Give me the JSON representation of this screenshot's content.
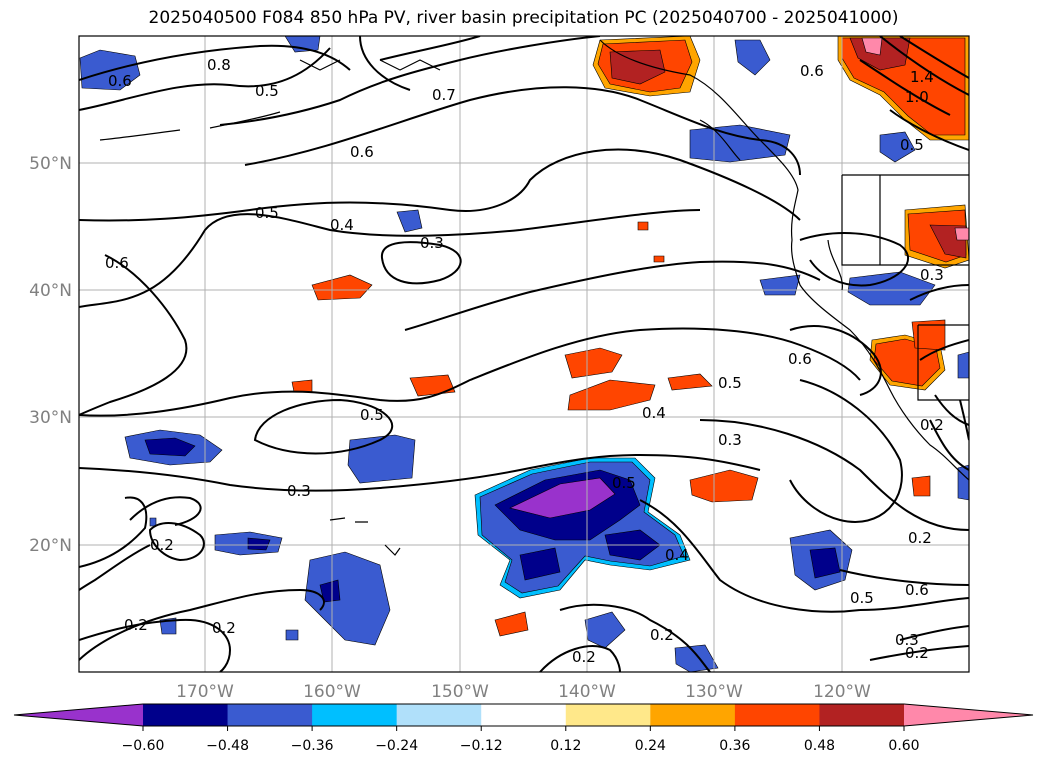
{
  "title": "2025040500 F084 850 hPa PV, river basin precipitation PC (2025040700 - 2025041000)",
  "lon_labels": [
    "170°W",
    "160°W",
    "150°W",
    "140°W",
    "130°W",
    "120°W"
  ],
  "lat_labels": [
    "50°N",
    "40°N",
    "30°N",
    "20°N"
  ],
  "colorbar": {
    "colors": [
      "#9932cc",
      "#00008b",
      "#3a5bd0",
      "#00bfff",
      "#b0e0fa",
      "#ffffff",
      "#ffe88a",
      "#ffa500",
      "#ff4500",
      "#b22222",
      "#ff88aa"
    ],
    "ticks": [
      "−0.60",
      "−0.48",
      "−0.36",
      "−0.24",
      "−0.12",
      "0.12",
      "0.24",
      "0.36",
      "0.48",
      "0.60"
    ]
  },
  "contour_labels": [
    "0.8",
    "0.6",
    "0.5",
    "0.7",
    "0.6",
    "0.5",
    "0.4",
    "0.3",
    "0.6",
    "0.5",
    "0.3",
    "0.2",
    "0.2",
    "0.2",
    "0.5",
    "0.4",
    "0.3",
    "0.6",
    "0.5",
    "0.4",
    "0.2",
    "0.2",
    "0.2",
    "0.5",
    "0.6",
    "0.3",
    "0.2",
    "0.6",
    "1.4",
    "1.0",
    "0.5",
    "0.3",
    "0.2"
  ]
}
